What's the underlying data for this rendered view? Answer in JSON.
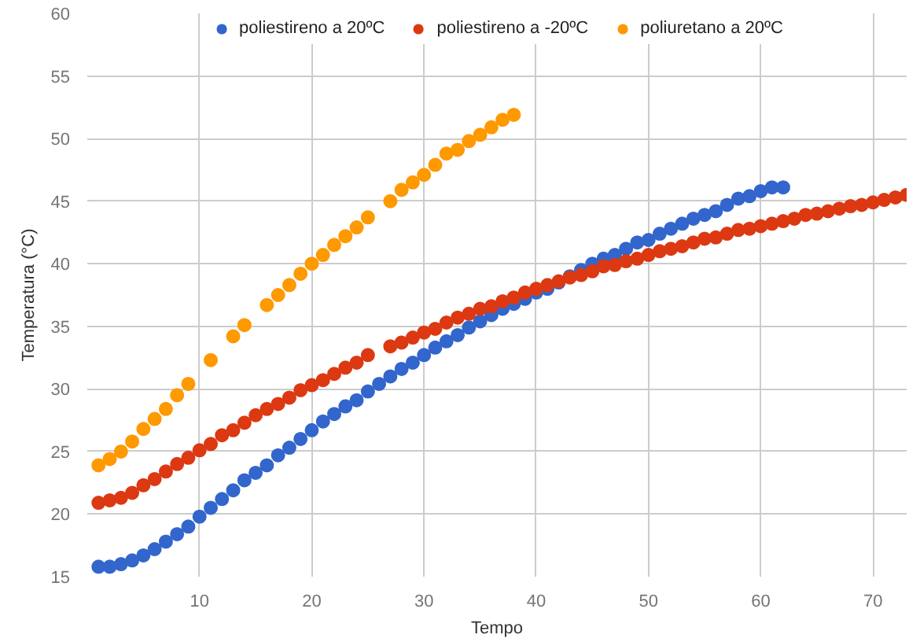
{
  "chart_data": {
    "type": "scatter",
    "xlabel": "Tempo",
    "ylabel": "Temperatura (°C)",
    "x": [
      1,
      2,
      3,
      4,
      5,
      6,
      7,
      8,
      9,
      10,
      11,
      12,
      13,
      14,
      15,
      16,
      17,
      18,
      19,
      20,
      21,
      22,
      23,
      24,
      25,
      26,
      27,
      28,
      29,
      30,
      31,
      32,
      33,
      34,
      35,
      36,
      37,
      38,
      39,
      40,
      41,
      42,
      43,
      44,
      45,
      46,
      47,
      48,
      49,
      50,
      51,
      52,
      53,
      54,
      55,
      56,
      57,
      58,
      59,
      60,
      61,
      62,
      63,
      64,
      65,
      66,
      67,
      68,
      69,
      70,
      71,
      72,
      73
    ],
    "series": [
      {
        "name": "poliestireno a 20ºC",
        "color": "#3366cc",
        "values": [
          15.8,
          15.8,
          16.0,
          16.3,
          16.7,
          17.2,
          17.8,
          18.4,
          19.0,
          19.8,
          20.5,
          21.2,
          21.9,
          22.7,
          23.3,
          23.9,
          24.7,
          25.3,
          26.0,
          26.7,
          27.4,
          28.0,
          28.6,
          29.1,
          29.8,
          30.4,
          31.0,
          31.6,
          32.1,
          32.7,
          33.3,
          33.8,
          34.3,
          34.9,
          35.4,
          35.9,
          36.4,
          36.8,
          37.2,
          37.7,
          38.0,
          38.5,
          39.0,
          39.5,
          40.0,
          40.4,
          40.7,
          41.2,
          41.7,
          41.9,
          42.4,
          42.8,
          43.2,
          43.6,
          43.9,
          44.2,
          44.7,
          45.2,
          45.4,
          45.8,
          46.1,
          46.1,
          null,
          null,
          null,
          null,
          null,
          null,
          null,
          null,
          null,
          null,
          null
        ]
      },
      {
        "name": "poliestireno a -20ºC",
        "color": "#dc3912",
        "values": [
          20.9,
          21.1,
          21.3,
          21.7,
          22.3,
          22.8,
          23.4,
          24.0,
          24.5,
          25.1,
          25.6,
          26.3,
          26.7,
          27.3,
          27.9,
          28.4,
          28.8,
          29.3,
          29.9,
          30.3,
          30.7,
          31.2,
          31.7,
          32.1,
          32.7,
          null,
          33.4,
          33.7,
          34.1,
          34.5,
          34.8,
          35.3,
          35.7,
          36.0,
          36.4,
          36.6,
          37.0,
          37.3,
          37.7,
          38.0,
          38.3,
          38.6,
          38.9,
          39.1,
          39.4,
          39.8,
          39.9,
          40.2,
          40.4,
          40.7,
          41.0,
          41.2,
          41.4,
          41.7,
          42.0,
          42.1,
          42.4,
          42.7,
          42.8,
          43.0,
          43.2,
          43.4,
          43.6,
          43.9,
          44.0,
          44.2,
          44.4,
          44.6,
          44.7,
          44.9,
          45.1,
          45.3,
          45.5
        ]
      },
      {
        "name": "poliuretano a 20ºC",
        "color": "#ff9900",
        "values": [
          23.9,
          24.4,
          25.0,
          25.8,
          26.8,
          27.6,
          28.4,
          29.5,
          30.4,
          null,
          32.3,
          null,
          34.2,
          35.1,
          null,
          36.7,
          37.5,
          38.3,
          39.2,
          40.0,
          40.7,
          41.5,
          42.2,
          42.9,
          43.7,
          null,
          45.0,
          45.9,
          46.5,
          47.1,
          47.9,
          48.8,
          49.1,
          49.8,
          50.3,
          50.9,
          51.5,
          51.9,
          null,
          null,
          null,
          null,
          null,
          null,
          null,
          null,
          null,
          null,
          null,
          null,
          null,
          null,
          null,
          null,
          null,
          null,
          null,
          null,
          null,
          null,
          null,
          null,
          null,
          null,
          null,
          null,
          null,
          null,
          null,
          null,
          null,
          null,
          null
        ]
      }
    ],
    "xlim": [
      0,
      73
    ],
    "xticks": [
      10,
      20,
      30,
      40,
      50,
      60,
      70
    ],
    "ylim": [
      15,
      60
    ],
    "yticks": [
      15,
      20,
      25,
      30,
      35,
      40,
      45,
      50,
      55,
      60
    ],
    "grid": true,
    "legend": "top",
    "marker": "circle"
  }
}
